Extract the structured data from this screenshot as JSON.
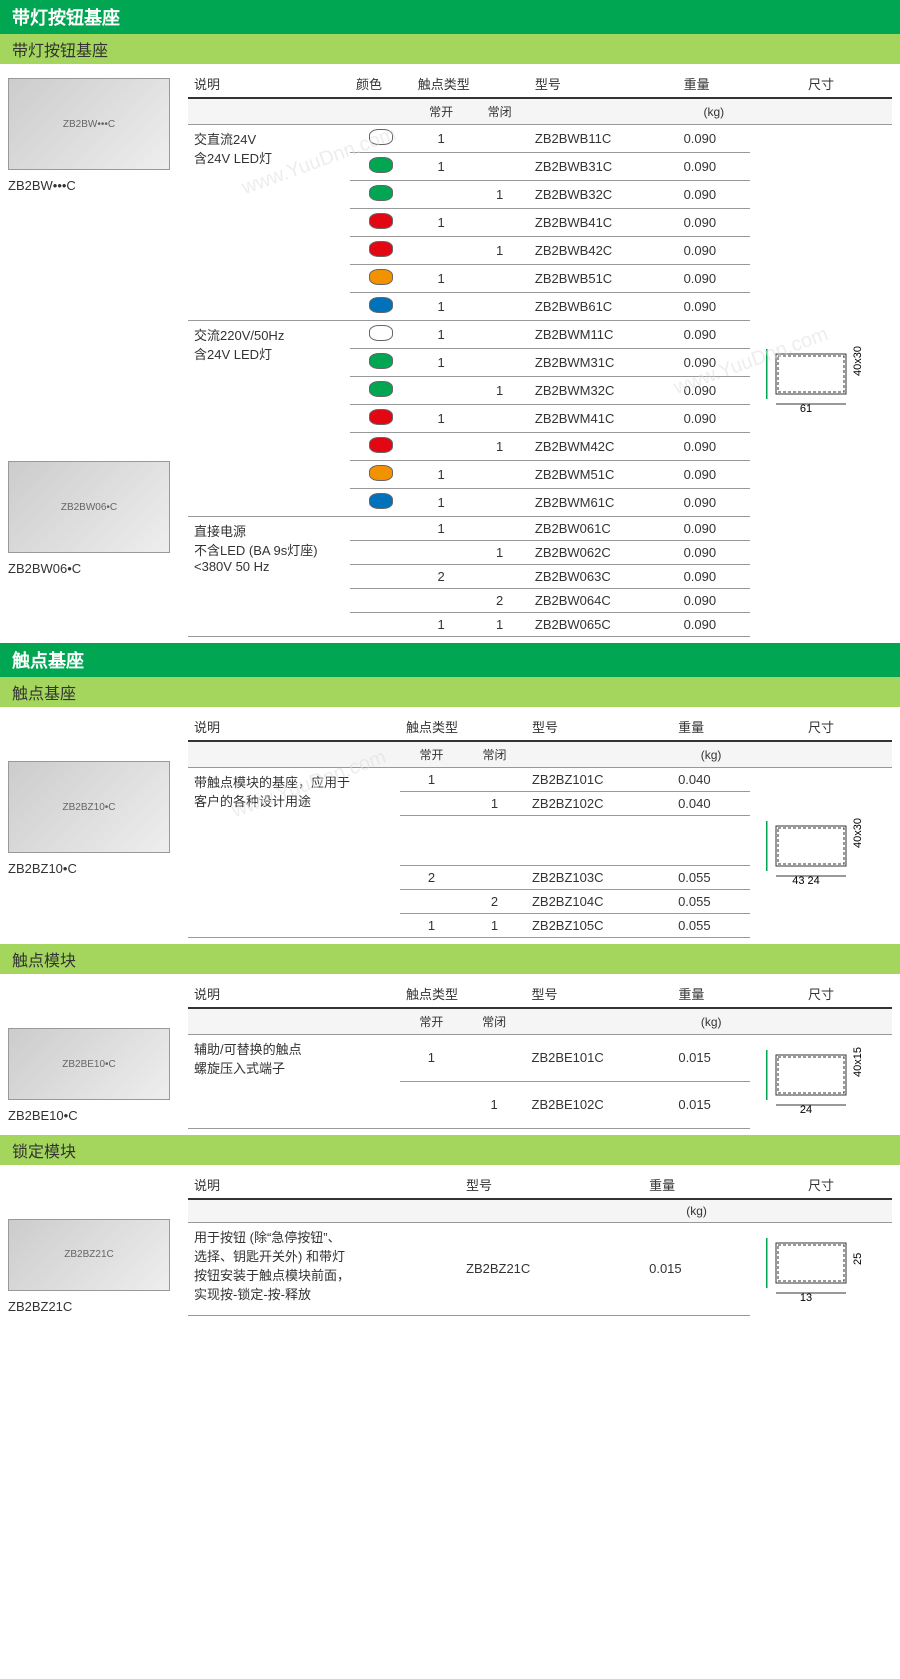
{
  "colors": {
    "white": "#ffffff",
    "green": "#00a651",
    "red": "#e30613",
    "orange": "#f39200",
    "blue": "#0072bc",
    "grey": "#cccccc"
  },
  "sec1": {
    "title": "带灯按钮基座",
    "subtitle": "带灯按钮基座",
    "headers": {
      "desc": "说明",
      "color": "颜色",
      "contact": "触点类型",
      "model": "型号",
      "weight": "重量",
      "dim": "尺寸"
    },
    "sub": {
      "open": "常开",
      "close": "常闭",
      "kg": "(kg)"
    },
    "img1_caption": "ZB2BW•••C",
    "img2_caption": "ZB2BW06•C",
    "group1_desc": "交直流24V\n含24V LED灯",
    "group2_desc": "交流220V/50Hz\n含24V LED灯",
    "group3_desc": "直接电源\n不含LED (BA 9s灯座)\n<380V 50 Hz",
    "rows1": [
      {
        "c": "white",
        "no": "1",
        "nc": "",
        "m": "ZB2BWB11C",
        "w": "0.090"
      },
      {
        "c": "green",
        "no": "1",
        "nc": "",
        "m": "ZB2BWB31C",
        "w": "0.090"
      },
      {
        "c": "green",
        "no": "",
        "nc": "1",
        "m": "ZB2BWB32C",
        "w": "0.090"
      },
      {
        "c": "red",
        "no": "1",
        "nc": "",
        "m": "ZB2BWB41C",
        "w": "0.090"
      },
      {
        "c": "red",
        "no": "",
        "nc": "1",
        "m": "ZB2BWB42C",
        "w": "0.090"
      },
      {
        "c": "orange",
        "no": "1",
        "nc": "",
        "m": "ZB2BWB51C",
        "w": "0.090"
      },
      {
        "c": "blue",
        "no": "1",
        "nc": "",
        "m": "ZB2BWB61C",
        "w": "0.090"
      }
    ],
    "rows2": [
      {
        "c": "white",
        "no": "1",
        "nc": "",
        "m": "ZB2BWM11C",
        "w": "0.090"
      },
      {
        "c": "green",
        "no": "1",
        "nc": "",
        "m": "ZB2BWM31C",
        "w": "0.090"
      },
      {
        "c": "green",
        "no": "",
        "nc": "1",
        "m": "ZB2BWM32C",
        "w": "0.090"
      },
      {
        "c": "red",
        "no": "1",
        "nc": "",
        "m": "ZB2BWM41C",
        "w": "0.090"
      },
      {
        "c": "red",
        "no": "",
        "nc": "1",
        "m": "ZB2BWM42C",
        "w": "0.090"
      },
      {
        "c": "orange",
        "no": "1",
        "nc": "",
        "m": "ZB2BWM51C",
        "w": "0.090"
      },
      {
        "c": "blue",
        "no": "1",
        "nc": "",
        "m": "ZB2BWM61C",
        "w": "0.090"
      }
    ],
    "rows3": [
      {
        "no": "1",
        "nc": "",
        "m": "ZB2BW061C",
        "w": "0.090"
      },
      {
        "no": "",
        "nc": "1",
        "m": "ZB2BW062C",
        "w": "0.090"
      },
      {
        "no": "2",
        "nc": "",
        "m": "ZB2BW063C",
        "w": "0.090"
      },
      {
        "no": "",
        "nc": "2",
        "m": "ZB2BW064C",
        "w": "0.090"
      },
      {
        "no": "1",
        "nc": "1",
        "m": "ZB2BW065C",
        "w": "0.090"
      }
    ],
    "dim": {
      "w": "61",
      "h": "40x30"
    }
  },
  "sec2": {
    "title": "触点基座",
    "subtitle": "触点基座",
    "headers": {
      "desc": "说明",
      "contact": "触点类型",
      "model": "型号",
      "weight": "重量",
      "dim": "尺寸"
    },
    "sub": {
      "open": "常开",
      "close": "常闭",
      "kg": "(kg)"
    },
    "img_caption": "ZB2BZ10•C",
    "desc": "带触点模块的基座，应用于\n客户的各种设计用途",
    "rows": [
      {
        "no": "1",
        "nc": "",
        "m": "ZB2BZ101C",
        "w": "0.040"
      },
      {
        "no": "",
        "nc": "1",
        "m": "ZB2BZ102C",
        "w": "0.040"
      },
      {
        "no": "",
        "nc": "",
        "m": "",
        "w": "",
        "blank": true
      },
      {
        "no": "2",
        "nc": "",
        "m": "ZB2BZ103C",
        "w": "0.055"
      },
      {
        "no": "",
        "nc": "2",
        "m": "ZB2BZ104C",
        "w": "0.055"
      },
      {
        "no": "1",
        "nc": "1",
        "m": "ZB2BZ105C",
        "w": "0.055"
      }
    ],
    "dim": {
      "w1": "43",
      "w2": "24",
      "h": "40x30"
    }
  },
  "sec3": {
    "title": "触点模块",
    "headers": {
      "desc": "说明",
      "contact": "触点类型",
      "model": "型号",
      "weight": "重量",
      "dim": "尺寸"
    },
    "sub": {
      "open": "常开",
      "close": "常闭",
      "kg": "(kg)"
    },
    "img_caption": "ZB2BE10•C",
    "desc": "辅助/可替换的触点\n螺旋压入式端子",
    "rows": [
      {
        "no": "1",
        "nc": "",
        "m": "ZB2BE101C",
        "w": "0.015"
      },
      {
        "no": "",
        "nc": "1",
        "m": "ZB2BE102C",
        "w": "0.015"
      }
    ],
    "dim": {
      "w": "24",
      "h": "40x15"
    }
  },
  "sec4": {
    "title": "锁定模块",
    "headers": {
      "desc": "说明",
      "model": "型号",
      "weight": "重量",
      "dim": "尺寸"
    },
    "sub": {
      "kg": "(kg)"
    },
    "img_caption": "ZB2BZ21C",
    "desc": "用于按钮 (除“急停按钮”、\n选择、钥匙开关外) 和带灯\n按钮安装于触点模块前面，\n实现按-锁定-按-释放",
    "rows": [
      {
        "m": "ZB2BZ21C",
        "w": "0.015"
      }
    ],
    "dim": {
      "w": "13",
      "h": "25"
    }
  }
}
